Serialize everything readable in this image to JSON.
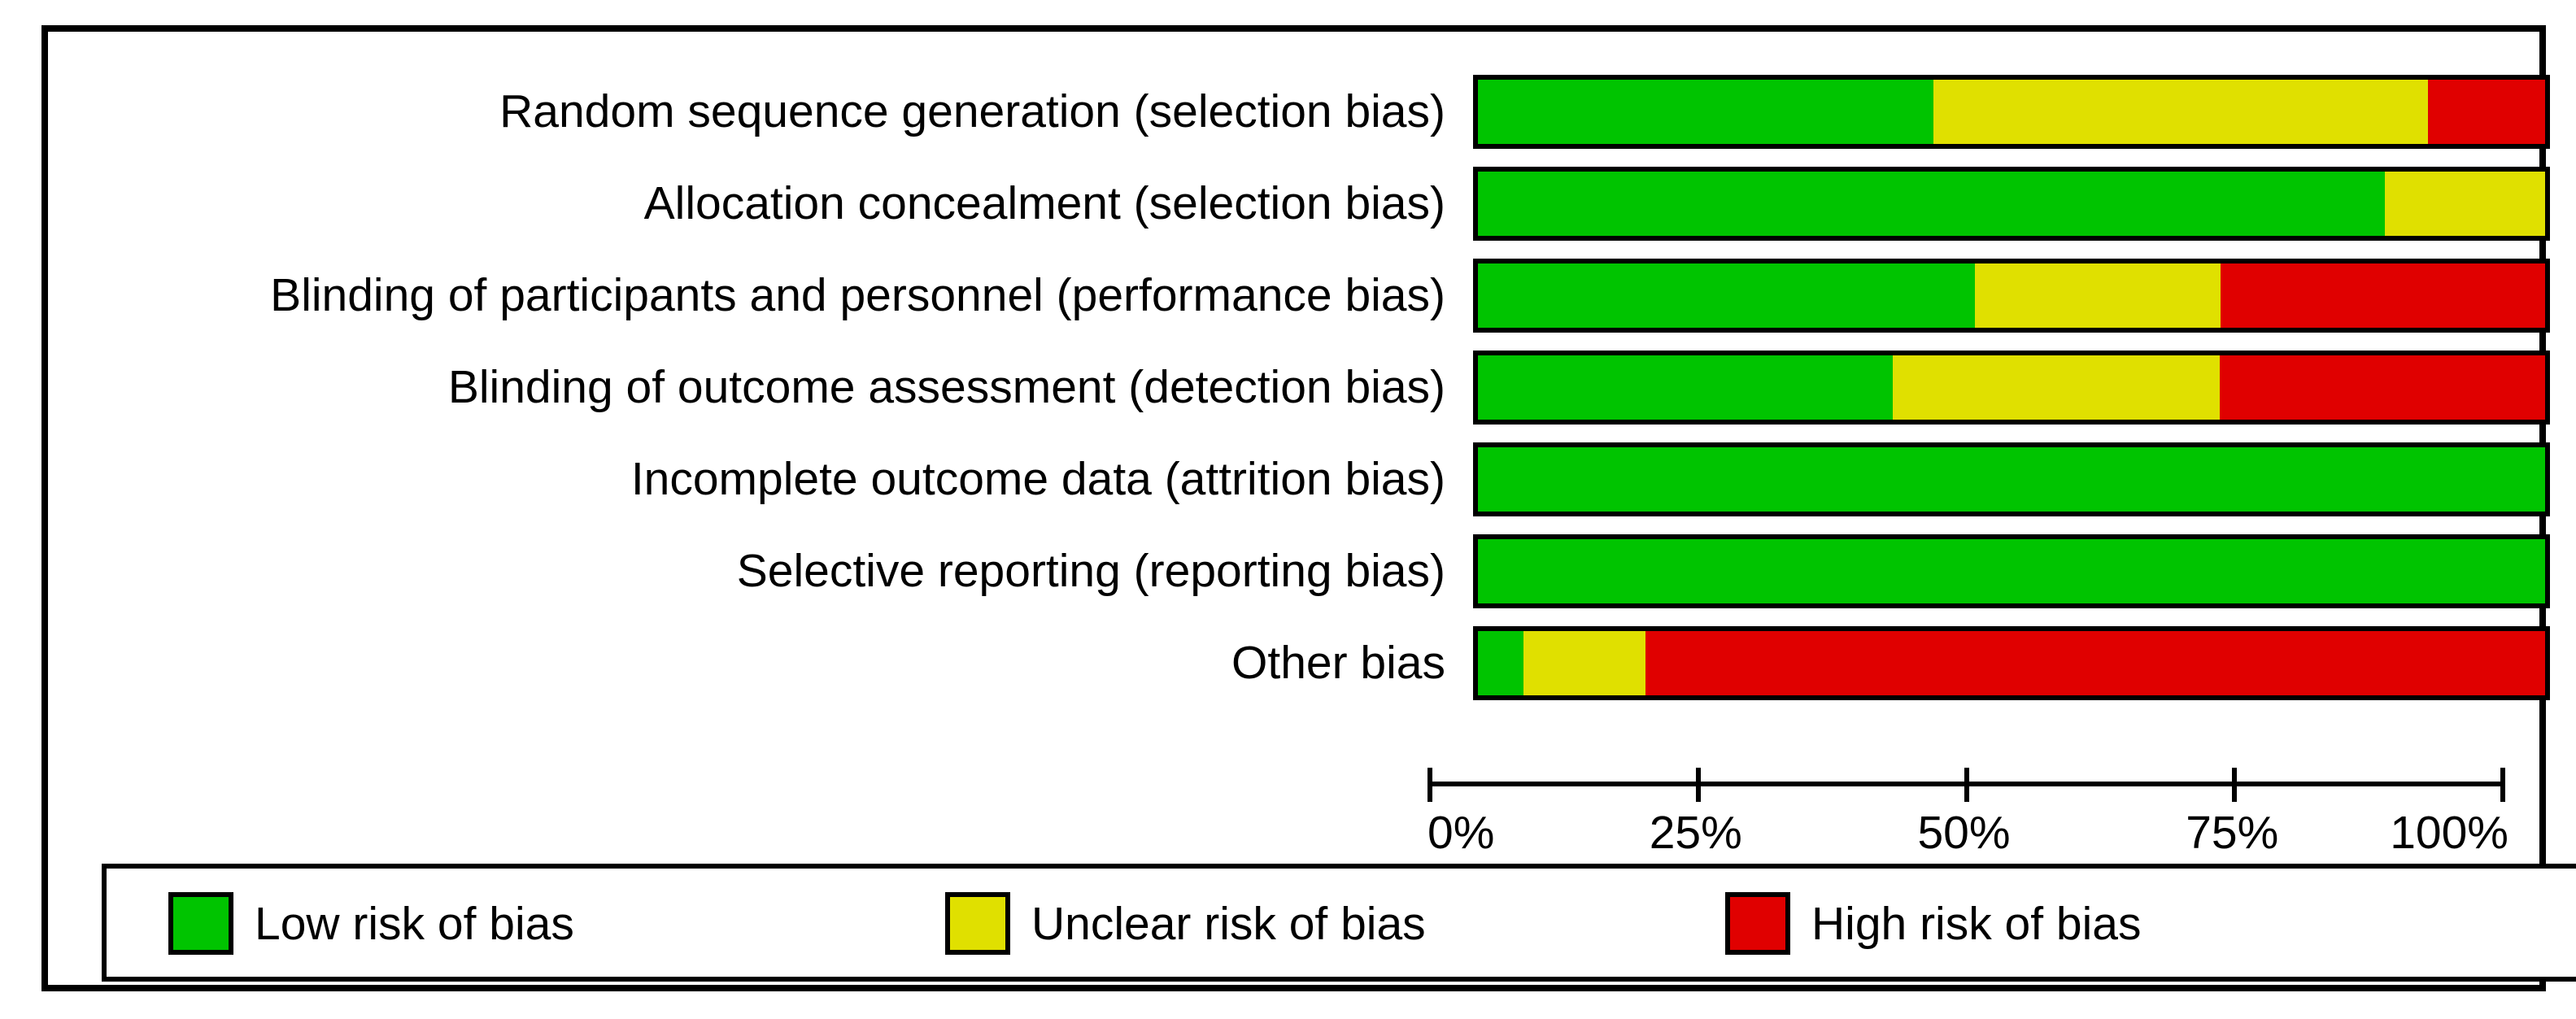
{
  "chart_data": {
    "type": "bar",
    "orientation": "horizontal_stacked",
    "title": "",
    "xlabel": "",
    "ylabel": "",
    "grid": false,
    "categories": [
      "Random sequence generation (selection bias)",
      "Allocation concealment (selection bias)",
      "Blinding of participants and personnel (performance bias)",
      "Blinding of outcome assessment (detection bias)",
      "Incomplete outcome data (attrition bias)",
      "Selective reporting (reporting bias)",
      "Other bias"
    ],
    "series": [
      {
        "name": "Low risk of bias",
        "color": "#00c400",
        "values": [
          42.7,
          85.0,
          46.6,
          38.9,
          100.0,
          100.0,
          4.3
        ]
      },
      {
        "name": "Unclear risk of bias",
        "color": "#e0e000",
        "values": [
          46.3,
          15.0,
          23.0,
          30.6,
          0.0,
          0.0,
          11.4
        ]
      },
      {
        "name": "High risk of bias",
        "color": "#e00000",
        "values": [
          11.0,
          0.0,
          30.4,
          30.5,
          0.0,
          0.0,
          84.3
        ]
      }
    ],
    "x_axis": {
      "range": [
        0,
        100
      ],
      "tick_labels": [
        "0%",
        "25%",
        "50%",
        "75%",
        "100%"
      ],
      "tick_values": [
        0,
        25,
        50,
        75,
        100
      ],
      "unit": "percent"
    },
    "legend": {
      "position": "bottom",
      "entries": [
        {
          "label": "Low risk of bias",
          "color": "#00c400"
        },
        {
          "label": "Unclear risk of bias",
          "color": "#e0e000"
        },
        {
          "label": "High risk of bias",
          "color": "#e00000"
        }
      ]
    }
  },
  "colors": {
    "low_risk": "#00c400",
    "unclear_risk": "#e0e000",
    "high_risk": "#e00000",
    "border": "#000000",
    "background": "#ffffff"
  }
}
